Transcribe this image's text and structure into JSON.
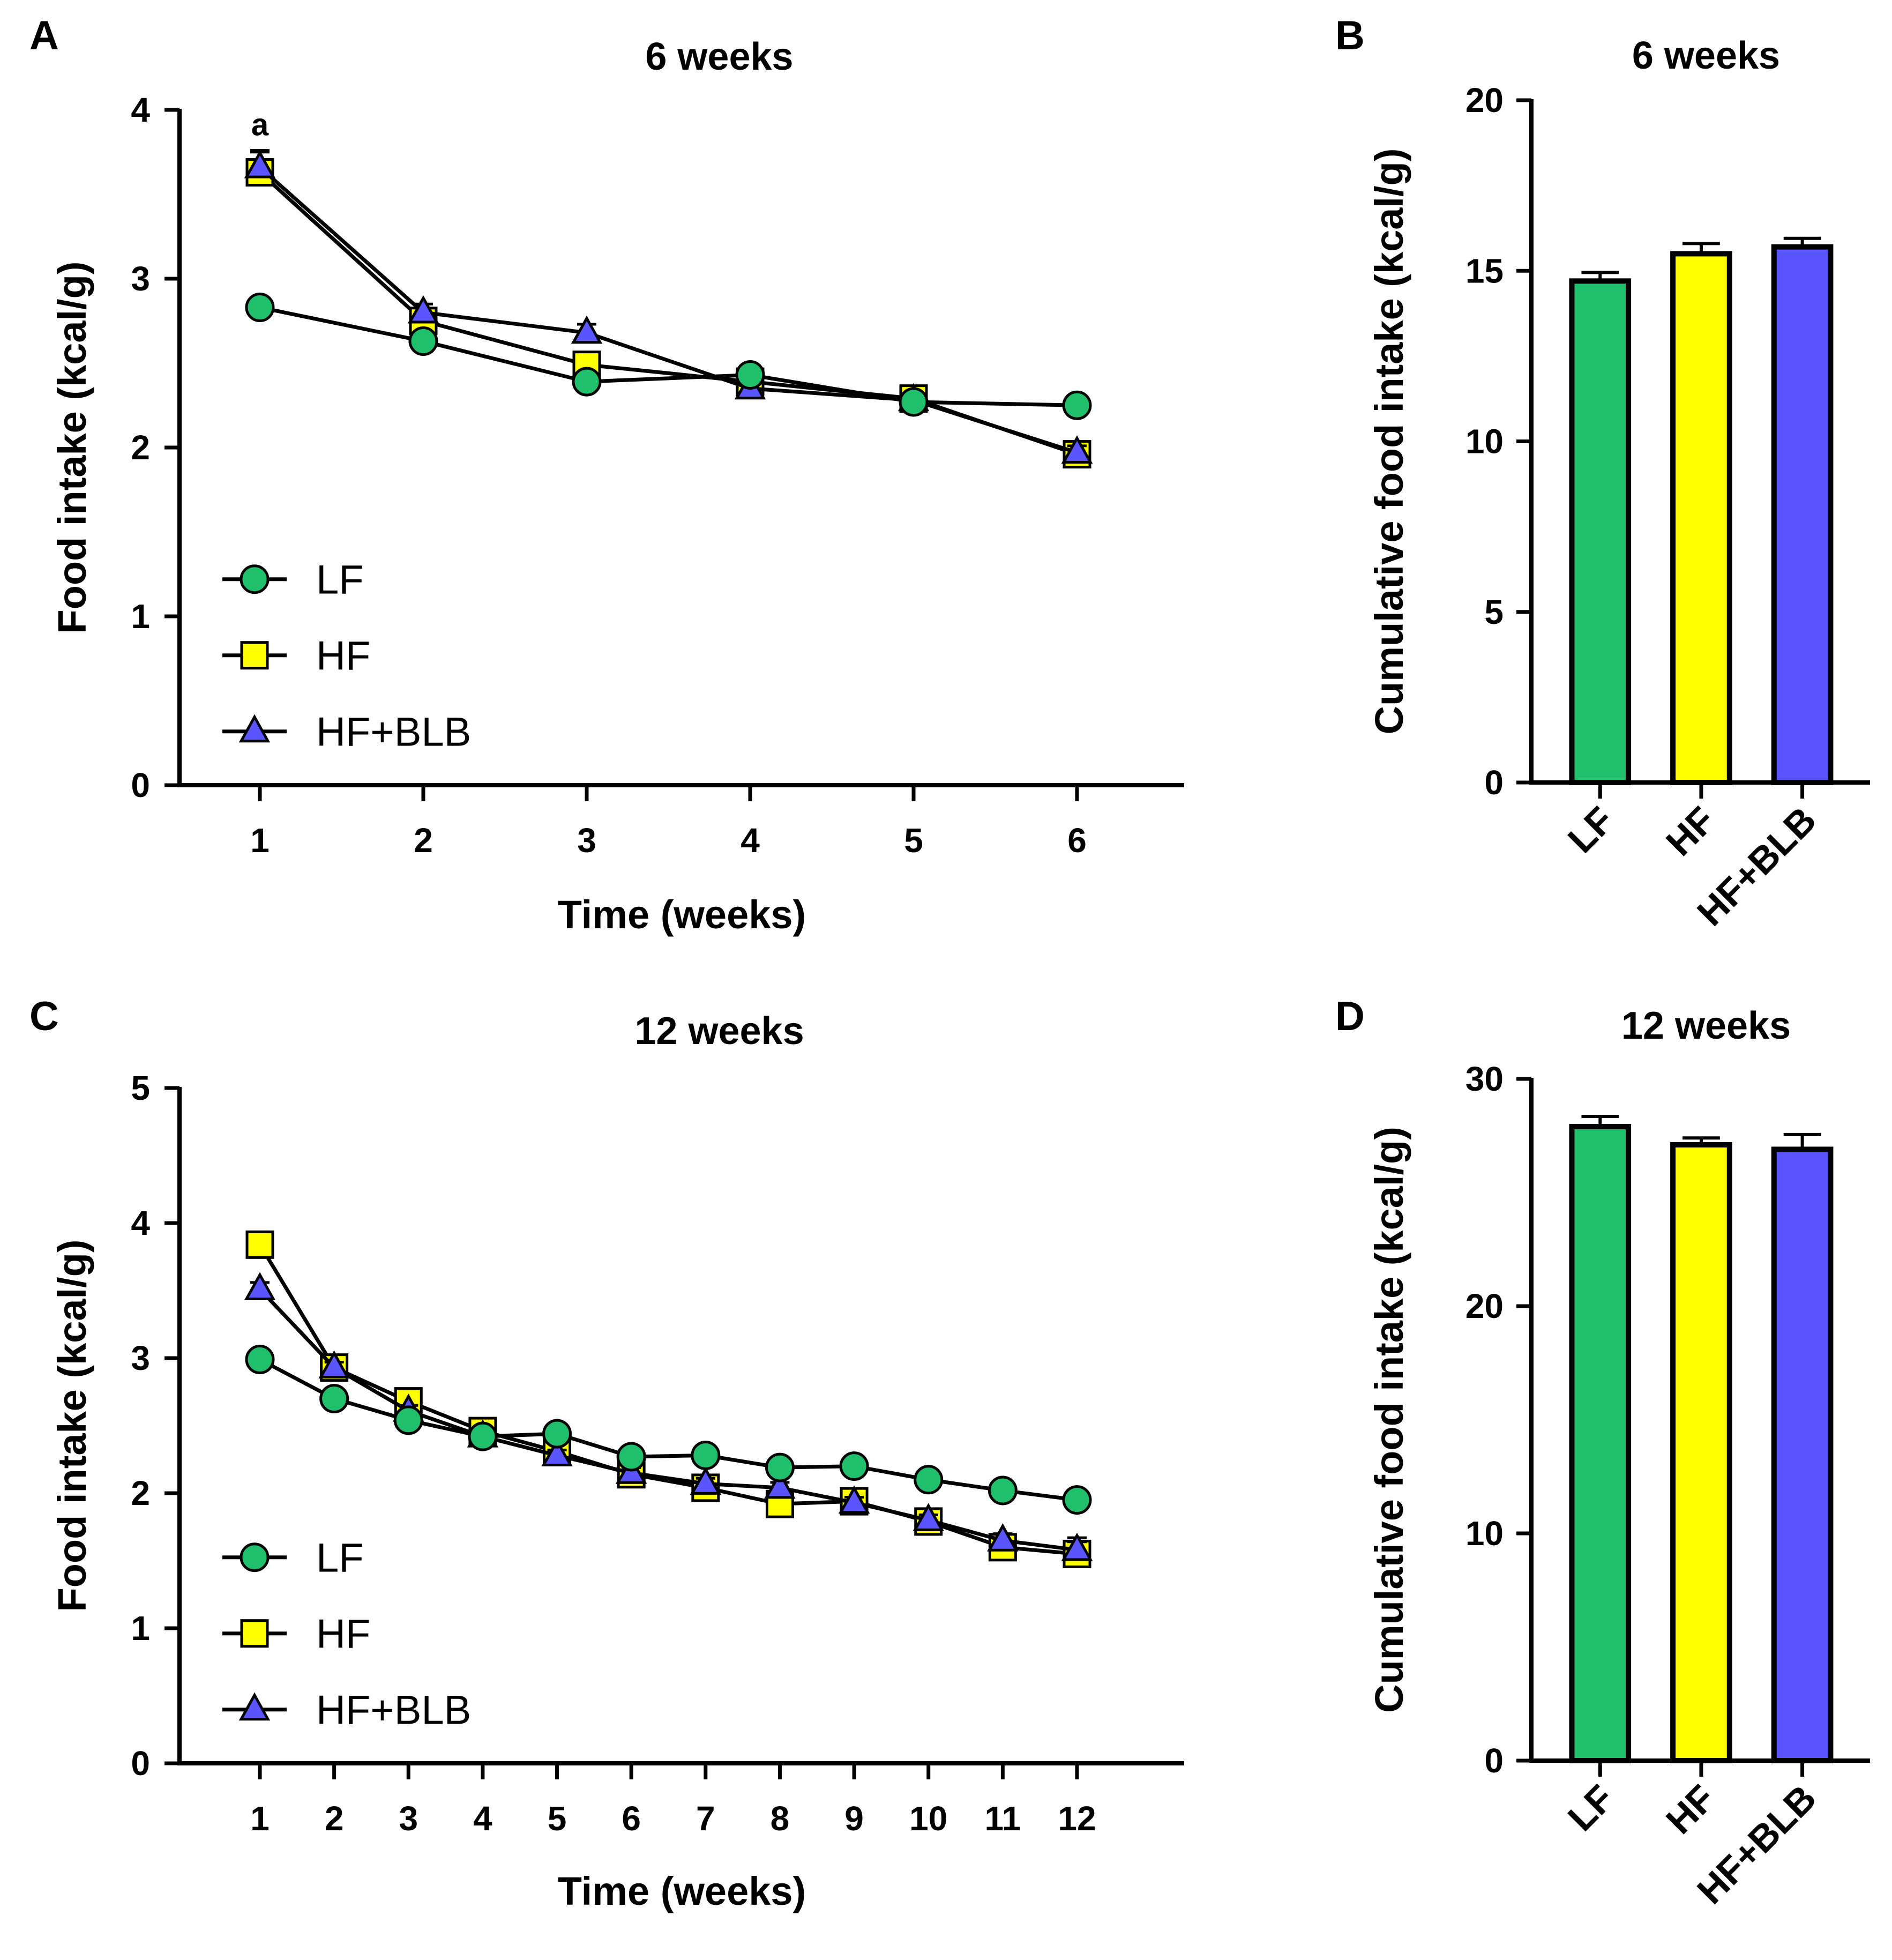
{
  "panels": {
    "A": "A",
    "B": "B",
    "C": "C",
    "D": "D"
  },
  "colors": {
    "LF": "#1fbf6b",
    "HF": "#ffff00",
    "HF+BLB": "#5a55ff",
    "axis": "#000000"
  },
  "chart_data": [
    {
      "panel": "A",
      "type": "line",
      "title": "6 weeks",
      "xlabel": "Time (weeks)",
      "ylabel": "Food intake (kcal/g)",
      "ylim": [
        0,
        4
      ],
      "yticks": [
        0,
        1,
        2,
        3,
        4
      ],
      "x": [
        1,
        2,
        3,
        4,
        5,
        6
      ],
      "legend_position": "bottom-left",
      "annotations": [
        {
          "text": "a",
          "x": 1,
          "y": 3.78
        }
      ],
      "series": [
        {
          "name": "LF",
          "marker": "circle",
          "values": [
            2.83,
            2.63,
            2.39,
            2.43,
            2.27,
            2.25
          ],
          "err": [
            0.03,
            0.03,
            0.04,
            0.05,
            0.04,
            0.04
          ]
        },
        {
          "name": "HF",
          "marker": "square",
          "values": [
            3.63,
            2.75,
            2.49,
            2.39,
            2.29,
            1.96
          ],
          "err": [
            0.12,
            0.06,
            0.06,
            0.05,
            0.04,
            0.04
          ]
        },
        {
          "name": "HF+BLB",
          "marker": "triangle",
          "values": [
            3.66,
            2.8,
            2.68,
            2.35,
            2.28,
            1.97
          ],
          "err": [
            0.1,
            0.05,
            0.05,
            0.04,
            0.04,
            0.04
          ]
        }
      ]
    },
    {
      "panel": "B",
      "type": "bar",
      "title": "6 weeks",
      "ylabel": "Cumulative food intake (kcal/g)",
      "ylim": [
        0,
        20
      ],
      "yticks": [
        0,
        5,
        10,
        15,
        20
      ],
      "categories": [
        "LF",
        "HF",
        "HF+BLB"
      ],
      "values": [
        14.7,
        15.5,
        15.7
      ],
      "err": [
        0.25,
        0.3,
        0.25
      ]
    },
    {
      "panel": "C",
      "type": "line",
      "title": "12 weeks",
      "xlabel": "Time (weeks)",
      "ylabel": "Food intake (kcal/g)",
      "ylim": [
        0,
        5
      ],
      "yticks": [
        0,
        1,
        2,
        3,
        4,
        5
      ],
      "x": [
        1,
        2,
        3,
        4,
        5,
        6,
        7,
        8,
        9,
        10,
        11,
        12
      ],
      "legend_position": "bottom-left",
      "series": [
        {
          "name": "LF",
          "marker": "circle",
          "values": [
            2.99,
            2.7,
            2.54,
            2.42,
            2.44,
            2.27,
            2.28,
            2.19,
            2.2,
            2.1,
            2.02,
            1.95
          ],
          "err": [
            0.03,
            0.03,
            0.03,
            0.03,
            0.03,
            0.03,
            0.03,
            0.03,
            0.03,
            0.03,
            0.03,
            0.03
          ]
        },
        {
          "name": "HF",
          "marker": "square",
          "values": [
            3.84,
            2.93,
            2.68,
            2.46,
            2.31,
            2.14,
            2.04,
            1.92,
            1.94,
            1.79,
            1.6,
            1.55
          ],
          "err": [
            0.05,
            0.05,
            0.04,
            0.04,
            0.04,
            0.04,
            0.04,
            0.04,
            0.04,
            0.04,
            0.06,
            0.12
          ]
        },
        {
          "name": "HF+BLB",
          "marker": "triangle",
          "values": [
            3.51,
            2.93,
            2.61,
            2.42,
            2.28,
            2.15,
            2.07,
            2.04,
            1.93,
            1.8,
            1.65,
            1.58
          ],
          "err": [
            0.05,
            0.04,
            0.04,
            0.04,
            0.04,
            0.04,
            0.04,
            0.04,
            0.04,
            0.04,
            0.05,
            0.06
          ]
        }
      ]
    },
    {
      "panel": "D",
      "type": "bar",
      "title": "12 weeks",
      "ylabel": "Cumulative food intake (kcal/g)",
      "ylim": [
        0,
        30
      ],
      "yticks": [
        0,
        10,
        20,
        30
      ],
      "categories": [
        "LF",
        "HF",
        "HF+BLB"
      ],
      "values": [
        27.9,
        27.1,
        26.9
      ],
      "err": [
        0.45,
        0.3,
        0.65
      ]
    }
  ]
}
